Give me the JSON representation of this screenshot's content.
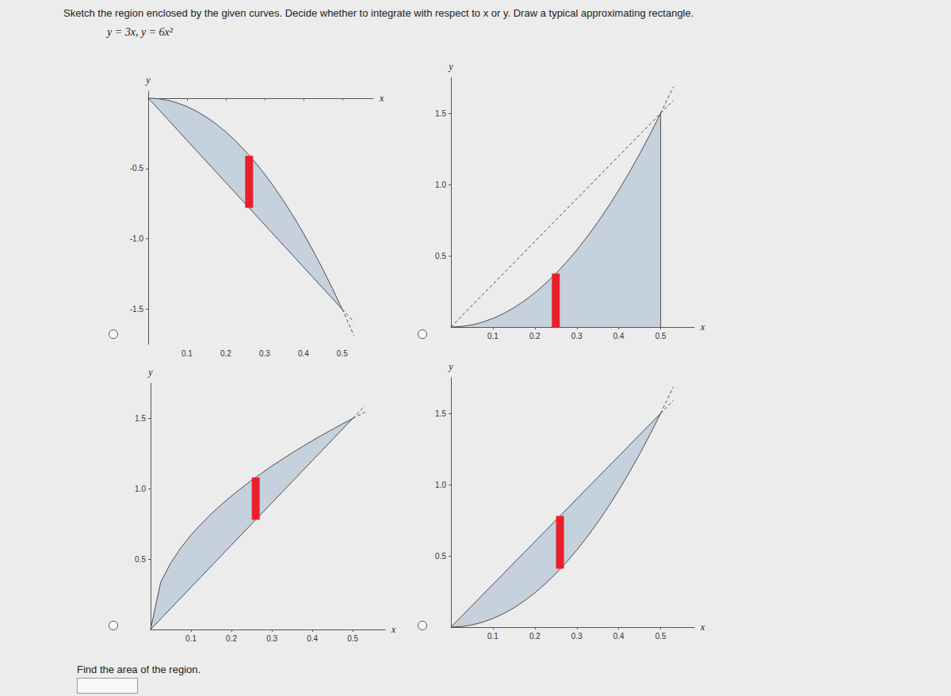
{
  "header": {
    "instruction": "Sketch the region enclosed by the given curves. Decide whether to integrate with respect to x or y. Draw a typical approximating rectangle.",
    "equations": "y = 3x,  y = 6x²"
  },
  "chart_data": [
    {
      "type": "area",
      "color": "#c5d1dd",
      "x_label": "x",
      "y_label": "y",
      "grid": false,
      "xlim": [
        0,
        0.58
      ],
      "ylim": [
        -1.75,
        0.05
      ],
      "xticks": [
        0.1,
        0.2,
        0.3,
        0.4,
        0.5
      ],
      "yticks": [
        -0.5,
        {
          "value": -1,
          "label": "-1.0"
        },
        -1.5
      ],
      "x": [
        0,
        0.025,
        0.05,
        0.075,
        0.1,
        0.125,
        0.15,
        0.175,
        0.2,
        0.225,
        0.25,
        0.275,
        0.3,
        0.325,
        0.35,
        0.375,
        0.4,
        0.425,
        0.45,
        0.475,
        0.5
      ],
      "series": [
        {
          "color": "#4d4d4d",
          "line_style": "solid",
          "values": [
            0,
            -0.004,
            -0.015,
            -0.034,
            -0.06,
            -0.094,
            -0.135,
            -0.184,
            -0.24,
            -0.304,
            -0.375,
            -0.454,
            -0.54,
            -0.634,
            -0.735,
            -0.844,
            -0.96,
            -1.084,
            -1.215,
            -1.354,
            -1.5
          ]
        },
        {
          "color": "#4d4d4d",
          "line_style": "solid",
          "values": [
            0,
            -0.075,
            -0.15,
            -0.225,
            -0.3,
            -0.375,
            -0.45,
            -0.525,
            -0.6,
            -0.675,
            -0.75,
            -0.825,
            -0.9,
            -0.975,
            -1.05,
            -1.125,
            -1.2,
            -1.275,
            -1.35,
            -1.425,
            -1.5
          ]
        },
        {
          "color": "#4d4d4d",
          "line_style": "dashed",
          "x": [
            0.5,
            0.53
          ],
          "values": [
            -1.5,
            -1.685
          ]
        },
        {
          "color": "#4d4d4d",
          "line_style": "dashed",
          "x": [
            0.5,
            0.53
          ],
          "values": [
            -1.5,
            -1.59
          ]
        }
      ],
      "rectangle": {
        "x": 0.26,
        "values": [
          -0.78,
          -0.41
        ],
        "color": "#e8202a"
      }
    },
    {
      "type": "area",
      "color": "#c5d1dd",
      "x_label": "x",
      "y_label": "y",
      "grid": false,
      "xlim": [
        0,
        0.58
      ],
      "ylim": [
        0,
        1.75
      ],
      "xticks": [
        0.1,
        0.2,
        0.3,
        0.4,
        0.5
      ],
      "yticks": [
        0.5,
        {
          "value": 1,
          "label": "1.0"
        },
        1.5
      ],
      "x": [
        0,
        0.025,
        0.05,
        0.075,
        0.1,
        0.125,
        0.15,
        0.175,
        0.2,
        0.225,
        0.25,
        0.275,
        0.3,
        0.325,
        0.35,
        0.375,
        0.4,
        0.425,
        0.45,
        0.475,
        0.5
      ],
      "series": [
        {
          "color": "#4d4d4d",
          "line_style": "solid",
          "values": [
            0,
            0.004,
            0.015,
            0.034,
            0.06,
            0.094,
            0.135,
            0.184,
            0.24,
            0.304,
            0.375,
            0.454,
            0.54,
            0.634,
            0.735,
            0.844,
            0.96,
            1.084,
            1.215,
            1.354,
            1.5
          ]
        },
        {
          "line_style": "none",
          "values": [
            0,
            0,
            0,
            0,
            0,
            0,
            0,
            0,
            0,
            0,
            0,
            0,
            0,
            0,
            0,
            0,
            0,
            0,
            0,
            0,
            0
          ]
        },
        {
          "color": "#4d4d4d",
          "line_style": "dashed",
          "x": [
            0,
            0.53
          ],
          "values": [
            0,
            1.59
          ]
        },
        {
          "color": "#4d4d4d",
          "line_style": "dashed",
          "x": [
            0.5,
            0.53
          ],
          "values": [
            1.5,
            1.685
          ]
        },
        {
          "color": "#4d4d4d",
          "line_style": "solid",
          "x": [
            0.5,
            0.5
          ],
          "values": [
            0,
            1.5
          ]
        }
      ],
      "rectangle": {
        "x": 0.25,
        "values": [
          0,
          0.375
        ],
        "color": "#e8202a"
      }
    },
    {
      "type": "area",
      "color": "#c5d1dd",
      "x_label": "x",
      "y_label": "y",
      "grid": false,
      "xlim": [
        0,
        0.58
      ],
      "ylim": [
        0,
        1.75
      ],
      "xticks": [
        0.1,
        0.2,
        0.3,
        0.4,
        0.5
      ],
      "yticks": [
        0.5,
        {
          "value": 1,
          "label": "1.0"
        },
        1.5
      ],
      "x": [
        0,
        0.025,
        0.05,
        0.075,
        0.1,
        0.125,
        0.15,
        0.175,
        0.2,
        0.225,
        0.25,
        0.275,
        0.3,
        0.325,
        0.35,
        0.375,
        0.4,
        0.425,
        0.45,
        0.475,
        0.5
      ],
      "series": [
        {
          "color": "#4d4d4d",
          "line_style": "solid",
          "values": [
            0,
            0.335,
            0.474,
            0.581,
            0.671,
            0.75,
            0.822,
            0.887,
            0.949,
            1.006,
            1.061,
            1.112,
            1.162,
            1.209,
            1.255,
            1.299,
            1.342,
            1.383,
            1.423,
            1.462,
            1.5
          ]
        },
        {
          "color": "#4d4d4d",
          "line_style": "solid",
          "values": [
            0,
            0.075,
            0.15,
            0.225,
            0.3,
            0.375,
            0.45,
            0.525,
            0.6,
            0.675,
            0.75,
            0.825,
            0.9,
            0.975,
            1.05,
            1.125,
            1.2,
            1.275,
            1.35,
            1.425,
            1.5
          ]
        },
        {
          "color": "#4d4d4d",
          "line_style": "dashed",
          "x": [
            0.5,
            0.53
          ],
          "values": [
            1.5,
            1.544
          ]
        },
        {
          "color": "#4d4d4d",
          "line_style": "dashed",
          "x": [
            0.5,
            0.53
          ],
          "values": [
            1.5,
            1.59
          ]
        }
      ],
      "rectangle": {
        "x": 0.26,
        "values": [
          0.78,
          1.08
        ],
        "color": "#e8202a"
      }
    },
    {
      "type": "area",
      "color": "#c5d1dd",
      "x_label": "x",
      "y_label": "y",
      "grid": false,
      "xlim": [
        0,
        0.58
      ],
      "ylim": [
        0,
        1.75
      ],
      "xticks": [
        0.1,
        0.2,
        0.3,
        0.4,
        0.5
      ],
      "yticks": [
        0.5,
        {
          "value": 1,
          "label": "1.0"
        },
        1.5
      ],
      "x": [
        0,
        0.025,
        0.05,
        0.075,
        0.1,
        0.125,
        0.15,
        0.175,
        0.2,
        0.225,
        0.25,
        0.275,
        0.3,
        0.325,
        0.35,
        0.375,
        0.4,
        0.425,
        0.45,
        0.475,
        0.5
      ],
      "series": [
        {
          "color": "#4d4d4d",
          "line_style": "solid",
          "values": [
            0,
            0.075,
            0.15,
            0.225,
            0.3,
            0.375,
            0.45,
            0.525,
            0.6,
            0.675,
            0.75,
            0.825,
            0.9,
            0.975,
            1.05,
            1.125,
            1.2,
            1.275,
            1.35,
            1.425,
            1.5
          ]
        },
        {
          "color": "#4d4d4d",
          "line_style": "solid",
          "values": [
            0,
            0.004,
            0.015,
            0.034,
            0.06,
            0.094,
            0.135,
            0.184,
            0.24,
            0.304,
            0.375,
            0.454,
            0.54,
            0.634,
            0.735,
            0.844,
            0.96,
            1.084,
            1.215,
            1.354,
            1.5
          ]
        },
        {
          "color": "#4d4d4d",
          "line_style": "dashed",
          "x": [
            0.5,
            0.53
          ],
          "values": [
            1.5,
            1.59
          ]
        },
        {
          "color": "#4d4d4d",
          "line_style": "dashed",
          "x": [
            0.5,
            0.53
          ],
          "values": [
            1.5,
            1.685
          ]
        }
      ],
      "rectangle": {
        "x": 0.26,
        "values": [
          0.41,
          0.78
        ],
        "color": "#e8202a"
      }
    }
  ],
  "footer": {
    "question": "Find the area of the region."
  }
}
